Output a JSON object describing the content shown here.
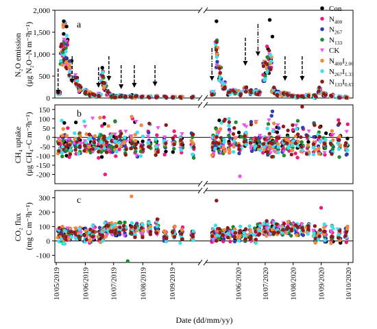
{
  "chart_data": [
    {
      "type": "scatter",
      "panel_label": "a",
      "ylabel": "N2O emission (μg N2O−N m−2h−1)",
      "ylabel_lines": [
        "N₂O emission",
        "(μg N₂O−N m⁻²h⁻¹)"
      ],
      "ylim": [
        0,
        2000
      ],
      "yticks": [
        0,
        500,
        1000,
        1500,
        2000
      ],
      "ytick_labels": [
        "0",
        "500",
        "1,000",
        "1,500",
        "2,000"
      ],
      "legend_position": "right",
      "arrows": {
        "solid": [
          "2019-05-12",
          "2019-05-27",
          "2019-06-24",
          "2019-07-05",
          "2019-07-18",
          "2019-08-01",
          "2019-08-23",
          "2020-06-18",
          "2020-08-01",
          "2020-08-20"
        ],
        "dashdot": [
          "2020-05-12",
          "2020-07-02"
        ]
      },
      "peaks": [
        {
          "x": "2019-05-18",
          "y": 1750
        },
        {
          "x": "2019-05-21",
          "y": 1630
        },
        {
          "x": "2019-06-28",
          "y": 690
        },
        {
          "x": "2020-05-17",
          "y": 1750
        },
        {
          "x": "2020-07-15",
          "y": 1780
        },
        {
          "x": "2020-07-18",
          "y": 1400
        }
      ]
    },
    {
      "type": "scatter",
      "panel_label": "b",
      "ylabel": "CH4 uptake (μg CH4−C m−2h−1)",
      "ylabel_lines": [
        "CH₄ uptake",
        "(μg CH₄−C m⁻²h⁻¹)"
      ],
      "ylim": [
        -250,
        175
      ],
      "yticks": [
        -200,
        -150,
        -100,
        -50,
        0,
        50,
        100,
        150
      ],
      "ytick_labels": [
        "-200",
        "-150",
        "-100",
        "-50",
        "0",
        "50",
        "100",
        "150"
      ],
      "zero_line": true,
      "extremes": [
        {
          "x": "2019-07-01",
          "y": -200
        },
        {
          "x": "2020-06-12",
          "y": -210
        },
        {
          "x": "2020-08-20",
          "y": 165
        },
        {
          "x": "2020-07-18",
          "y": 140
        }
      ]
    },
    {
      "type": "scatter",
      "panel_label": "c",
      "ylabel": "CO2 flux (mg C m−2h−1)",
      "ylabel_lines": [
        "CO₂ flux",
        "(mg C m⁻²h⁻¹)"
      ],
      "ylim": [
        -150,
        350
      ],
      "yticks": [
        -100,
        0,
        100,
        200,
        300
      ],
      "ytick_labels": [
        "-100",
        "0",
        "100",
        "200",
        "300"
      ],
      "zero_line": true,
      "extremes": [
        {
          "x": "2019-07-25",
          "y": -140
        },
        {
          "x": "2019-07-29",
          "y": 310
        },
        {
          "x": "2020-05-17",
          "y": 280
        },
        {
          "x": "2020-09-10",
          "y": 230
        }
      ]
    }
  ],
  "shared": {
    "xlabel": "Date (dd/mm/yy)",
    "xtick_labels_left": [
      "10/05/2019",
      "10/06/2019",
      "10/07/2019",
      "10/08/2019",
      "10/09/2019"
    ],
    "xtick_labels_right": [
      "10/06/2020",
      "10/07/2020",
      "10/08/2020",
      "10/09/2020",
      "10/10/2020"
    ],
    "xlim_left": [
      "2019-05-10",
      "2019-10-10"
    ],
    "xlim_right": [
      "2020-05-05",
      "2020-10-10"
    ],
    "axis_break": true
  },
  "legend": [
    {
      "label": "Con",
      "color": "#000000"
    },
    {
      "label": "N",
      "sub": "400",
      "color": "#ee1c7c"
    },
    {
      "label": "N",
      "sub": "267",
      "color": "#2f3fb0"
    },
    {
      "label": "N",
      "sub": "133",
      "color": "#1e8a2e"
    },
    {
      "label": "CK",
      "color": "#ee55ee",
      "marker": "triangle-down"
    },
    {
      "label": "N",
      "sub": "400",
      "label2": "I",
      "sub2": "2.00",
      "color": "#f08a3c"
    },
    {
      "label": "N",
      "sub": "267",
      "label2": "I",
      "sub2": "1.33",
      "color": "#3fe0ec"
    },
    {
      "label": "N",
      "sub": "133",
      "label2": "I",
      "sub2": "0.67",
      "color": "#8c1b1b"
    }
  ],
  "sampling_dates": [
    "2019-05-13",
    "2019-05-16",
    "2019-05-18",
    "2019-05-21",
    "2019-05-25",
    "2019-05-31",
    "2019-06-04",
    "2019-06-10",
    "2019-06-15",
    "2019-06-19",
    "2019-06-25",
    "2019-06-28",
    "2019-07-01",
    "2019-07-04",
    "2019-07-08",
    "2019-07-12",
    "2019-07-17",
    "2019-07-22",
    "2019-07-29",
    "2019-08-03",
    "2019-08-09",
    "2019-08-17",
    "2019-08-25",
    "2019-09-03",
    "2019-09-12",
    "2019-09-20",
    "2019-10-02",
    "2020-05-13",
    "2020-05-17",
    "2020-05-21",
    "2020-05-25",
    "2020-05-31",
    "2020-06-06",
    "2020-06-12",
    "2020-06-18",
    "2020-06-24",
    "2020-06-29",
    "2020-07-03",
    "2020-07-09",
    "2020-07-13",
    "2020-07-16",
    "2020-07-19",
    "2020-07-24",
    "2020-07-30",
    "2020-08-04",
    "2020-08-09",
    "2020-08-14",
    "2020-08-20",
    "2020-08-26",
    "2020-09-03",
    "2020-09-08",
    "2020-09-14",
    "2020-09-22",
    "2020-09-30",
    "2020-10-08"
  ],
  "n2o_baseline": [
    130,
    1100,
    1450,
    1200,
    700,
    450,
    250,
    150,
    100,
    80,
    80,
    500,
    300,
    150,
    60,
    40,
    50,
    30,
    40,
    40,
    30,
    30,
    30,
    20,
    20,
    20,
    20,
    130,
    1200,
    600,
    300,
    150,
    160,
    120,
    200,
    160,
    150,
    130,
    700,
    1000,
    850,
    200,
    120,
    100,
    100,
    50,
    40,
    50,
    60,
    40,
    200,
    100,
    50,
    30,
    20
  ]
}
